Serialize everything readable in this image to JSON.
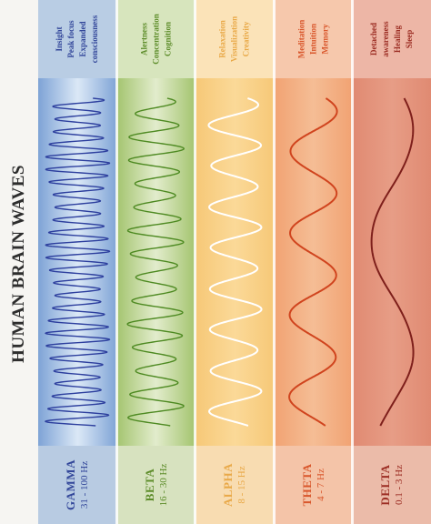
{
  "title": "HUMAN BRAIN WAVES",
  "bands": [
    {
      "name": "GAMMA",
      "frequency": "31 - 100 Hz",
      "traits": [
        "Insight",
        "Peak focus",
        "Expanded",
        "consciousness"
      ],
      "colors": {
        "top": "#b9cde4",
        "mid_edge": "#7ea3d6",
        "mid_center": "#dbe8f6",
        "bot": "#b8cbe2",
        "text": "#33479a",
        "wave": "#2d3f9e"
      },
      "cycles": 26,
      "amplitude": 0.82,
      "amp_variation": 0.3
    },
    {
      "name": "BETA",
      "frequency": "16 - 30 Hz",
      "traits": [
        "Alertness",
        "Concentration",
        "Cognition"
      ],
      "colors": {
        "top": "#d7e5bd",
        "mid_edge": "#a3c46e",
        "mid_center": "#e2eccc",
        "bot": "#d7e2bf",
        "text": "#5e8d2b",
        "wave": "#4e8a22"
      },
      "cycles": 14,
      "amplitude": 0.72,
      "amp_variation": 0.3
    },
    {
      "name": "ALPHA",
      "frequency": "8 - 15 Hz",
      "traits": [
        "Relaxation",
        "Visualization",
        "Creativity"
      ],
      "colors": {
        "top": "#fbe3b8",
        "mid_edge": "#f6c877",
        "mid_center": "#fbd998",
        "bot": "#f8dcb1",
        "text": "#e9a948",
        "wave": "#ffffff"
      },
      "cycles": 8,
      "amplitude": 0.68,
      "amp_variation": 0.15
    },
    {
      "name": "THETA",
      "frequency": "4 - 7 Hz",
      "traits": [
        "Meditation",
        "Intuition",
        "Memory"
      ],
      "colors": {
        "top": "#f6c8ac",
        "mid_edge": "#f1a272",
        "mid_center": "#f5bd95",
        "bot": "#f4c4a8",
        "text": "#d9572c",
        "wave": "#d0441e"
      },
      "cycles": 4,
      "amplitude": 0.62,
      "amp_variation": 0.1
    },
    {
      "name": "DELTA",
      "frequency": "0.1 - 3 Hz",
      "traits": [
        "Detached",
        "awareness",
        "Healing",
        "Sleep"
      ],
      "colors": {
        "top": "#edb6a6",
        "mid_edge": "#e08a72",
        "mid_center": "#e79d86",
        "bot": "#ebbba9",
        "text": "#9c2e24",
        "wave": "#7e1f1b"
      },
      "cycles": 1.5,
      "amplitude": 0.55,
      "amp_variation": 0.05
    }
  ]
}
